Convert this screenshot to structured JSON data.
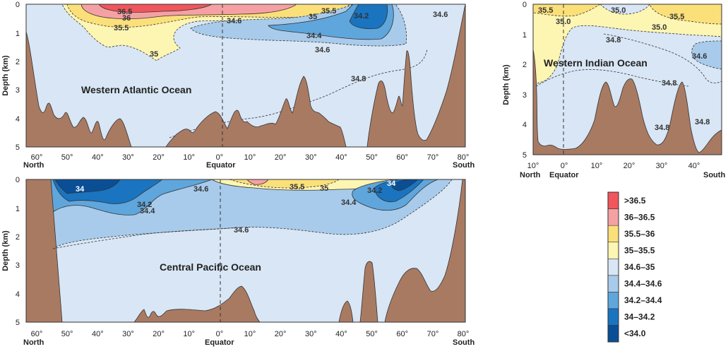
{
  "colors": {
    "c1": "#f0565c",
    "c2": "#f5a1a4",
    "c3": "#fbe07a",
    "c4": "#fdf5b2",
    "c5": "#d8e6f5",
    "c6": "#a8cbeb",
    "c7": "#5fa6dc",
    "c8": "#1a74c0",
    "c9": "#0a4f96",
    "land": "#a97a62"
  },
  "legend": [
    {
      "label": ">36.5",
      "color": "#f0565c"
    },
    {
      "label": "36–36.5",
      "color": "#f5a1a4"
    },
    {
      "label": "35.5–36",
      "color": "#fbe07a"
    },
    {
      "label": "35–35.5",
      "color": "#fdf5b2"
    },
    {
      "label": "34.6–35",
      "color": "#d8e6f5"
    },
    {
      "label": "34.4–34.6",
      "color": "#a8cbeb"
    },
    {
      "label": "34.2–34.4",
      "color": "#5fa6dc"
    },
    {
      "label": "34–34.2",
      "color": "#1a74c0"
    },
    {
      "label": "<34.0",
      "color": "#0a4f96"
    }
  ],
  "depth_axis": {
    "label": "Depth (km)",
    "ticks": [
      "0",
      "1",
      "2",
      "3",
      "4",
      "5"
    ]
  },
  "lat_ticks": [
    "60°",
    "50°",
    "40°",
    "30°",
    "20°",
    "10°",
    "0°",
    "10°",
    "20°",
    "30°",
    "40°",
    "50°",
    "60°",
    "70°",
    "80°"
  ],
  "atlantic": {
    "title": "Western Atlantic Ocean",
    "north": "North",
    "equator": "Equator",
    "south": "South",
    "contour_labels": [
      "36.5",
      "36",
      "35.5",
      "35",
      "35.5",
      "35",
      "34.6",
      "34.2",
      "34.6",
      "34.4",
      "34.6",
      "34.8"
    ]
  },
  "pacific": {
    "title": "Central Pacific Ocean",
    "north": "North",
    "equator": "Equator",
    "south": "South",
    "contour_labels": [
      "34",
      "34.6",
      "35.5",
      "35",
      "34",
      "34.2",
      "34.2",
      "34.4",
      "34.4",
      "34.6"
    ]
  },
  "indian": {
    "title": "Western Indian Ocean",
    "north": "North",
    "equator": "Equator",
    "south": "South",
    "ticks": [
      "10°",
      "0°",
      "10°",
      "20°",
      "30°",
      "40°"
    ],
    "contour_labels": [
      "35.5",
      "35.0",
      "35.0",
      "35.5",
      "35.0",
      "34.8",
      "34.6",
      "34.8",
      "34.8",
      "34.8"
    ]
  }
}
